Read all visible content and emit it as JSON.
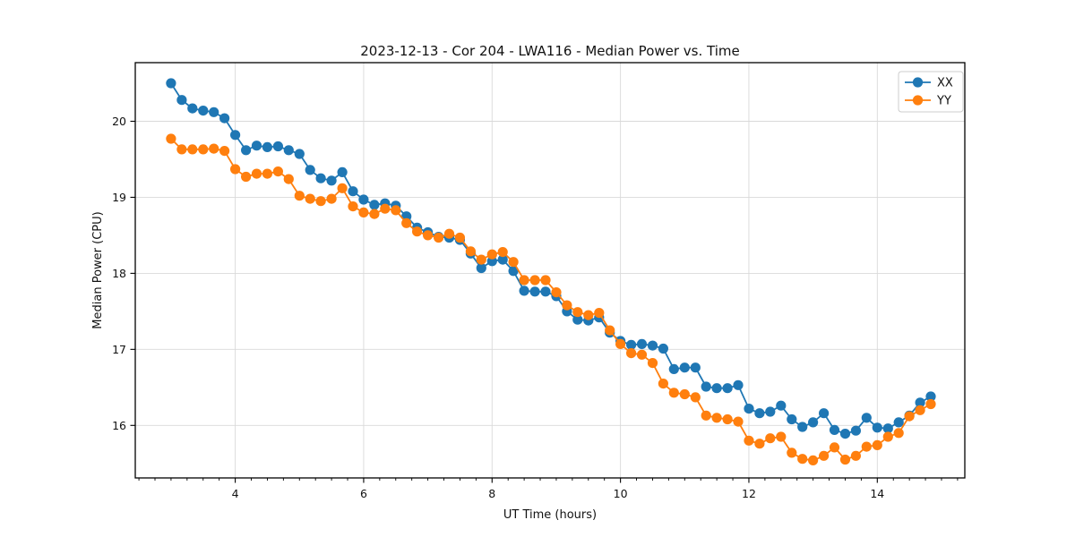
{
  "chart_data": {
    "type": "line",
    "title": "2023-12-13 - Cor 204 - LWA116 - Median Power vs. Time",
    "xlabel": "UT Time (hours)",
    "ylabel": "Median Power (CPU)",
    "xlim": [
      2.443,
      15.363
    ],
    "ylim": [
      15.309,
      20.771
    ],
    "x_ticks": [
      4,
      6,
      8,
      10,
      12,
      14
    ],
    "x_minor_tick_step": 0.25,
    "y_ticks": [
      16,
      17,
      18,
      19,
      20
    ],
    "grid": true,
    "grid_color": "#d9d9d9",
    "legend_position": "upper right",
    "marker": "circle",
    "x": [
      3.0,
      3.167,
      3.333,
      3.5,
      3.667,
      3.833,
      4.0,
      4.167,
      4.333,
      4.5,
      4.667,
      4.833,
      5.0,
      5.167,
      5.333,
      5.5,
      5.667,
      5.833,
      6.0,
      6.167,
      6.333,
      6.5,
      6.667,
      6.833,
      7.0,
      7.167,
      7.333,
      7.5,
      7.667,
      7.833,
      8.0,
      8.167,
      8.333,
      8.5,
      8.667,
      8.833,
      9.0,
      9.167,
      9.333,
      9.5,
      9.667,
      9.833,
      10.0,
      10.167,
      10.333,
      10.5,
      10.667,
      10.833,
      11.0,
      11.167,
      11.333,
      11.5,
      11.667,
      11.833,
      12.0,
      12.167,
      12.333,
      12.5,
      12.667,
      12.833,
      13.0,
      13.167,
      13.333,
      13.5,
      13.667,
      13.833,
      14.0,
      14.167,
      14.333,
      14.5,
      14.667,
      14.833
    ],
    "series": [
      {
        "name": "XX",
        "color": "#1f77b4",
        "values": [
          20.5,
          20.28,
          20.17,
          20.14,
          20.12,
          20.04,
          19.82,
          19.62,
          19.68,
          19.66,
          19.67,
          19.62,
          19.57,
          19.36,
          19.25,
          19.22,
          19.33,
          19.08,
          18.97,
          18.9,
          18.92,
          18.89,
          18.75,
          18.6,
          18.54,
          18.48,
          18.47,
          18.44,
          18.26,
          18.07,
          18.16,
          18.18,
          18.03,
          17.77,
          17.76,
          17.76,
          17.7,
          17.5,
          17.39,
          17.38,
          17.42,
          17.22,
          17.11,
          17.06,
          17.07,
          17.05,
          17.01,
          16.74,
          16.76,
          16.76,
          16.51,
          16.49,
          16.49,
          16.53,
          16.22,
          16.16,
          16.18,
          16.26,
          16.08,
          15.98,
          16.04,
          16.16,
          15.94,
          15.89,
          15.93,
          16.1,
          15.97,
          15.96,
          16.04,
          16.13,
          16.3,
          16.38
        ]
      },
      {
        "name": "YY",
        "color": "#ff7f0e",
        "values": [
          19.77,
          19.63,
          19.63,
          19.63,
          19.64,
          19.61,
          19.37,
          19.27,
          19.31,
          19.31,
          19.34,
          19.24,
          19.02,
          18.98,
          18.95,
          18.98,
          19.12,
          18.88,
          18.8,
          18.78,
          18.85,
          18.83,
          18.66,
          18.55,
          18.5,
          18.47,
          18.52,
          18.47,
          18.29,
          18.18,
          18.25,
          18.28,
          18.15,
          17.91,
          17.91,
          17.91,
          17.75,
          17.58,
          17.49,
          17.45,
          17.48,
          17.25,
          17.07,
          16.95,
          16.93,
          16.82,
          16.55,
          16.43,
          16.41,
          16.37,
          16.13,
          16.1,
          16.08,
          16.05,
          15.8,
          15.76,
          15.83,
          15.85,
          15.64,
          15.56,
          15.54,
          15.6,
          15.71,
          15.55,
          15.6,
          15.72,
          15.74,
          15.85,
          15.9,
          16.12,
          16.2,
          16.28
        ]
      }
    ]
  },
  "style": {
    "background": "#ffffff",
    "spine_color": "#000000",
    "text_color": "#111111",
    "legend_border": "#cccccc",
    "legend_fill": "#ffffff"
  }
}
